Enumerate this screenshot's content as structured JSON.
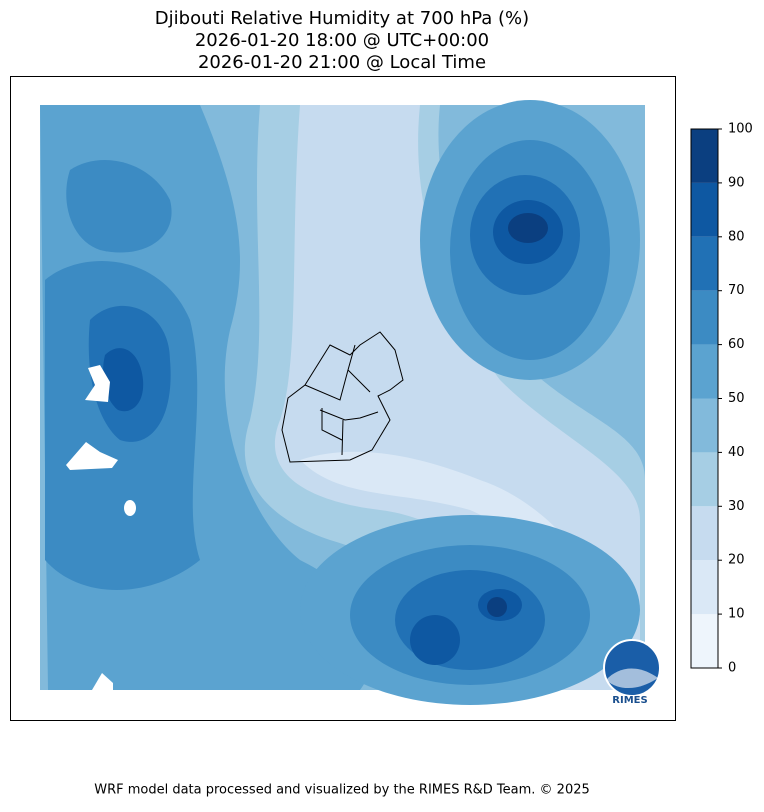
{
  "title": [
    "Djibouti Relative Humidity at 700 hPa (%)",
    "2026-01-20 18:00 @ UTC+00:00",
    "2026-01-20 21:00 @ Local Time"
  ],
  "colorbar": {
    "levels": [
      0,
      10,
      20,
      30,
      40,
      50,
      60,
      70,
      80,
      90,
      100
    ],
    "colors": [
      "#eef5fc",
      "#dae8f6",
      "#c6dbef",
      "#a6cee4",
      "#82badb",
      "#5ba3d0",
      "#3c8bc3",
      "#2171b5",
      "#0e58a2",
      "#0b3f80"
    ]
  },
  "logo": "RIMES",
  "footer": "WRF model data processed and visualized by the RIMES R&D Team. © 2025"
}
